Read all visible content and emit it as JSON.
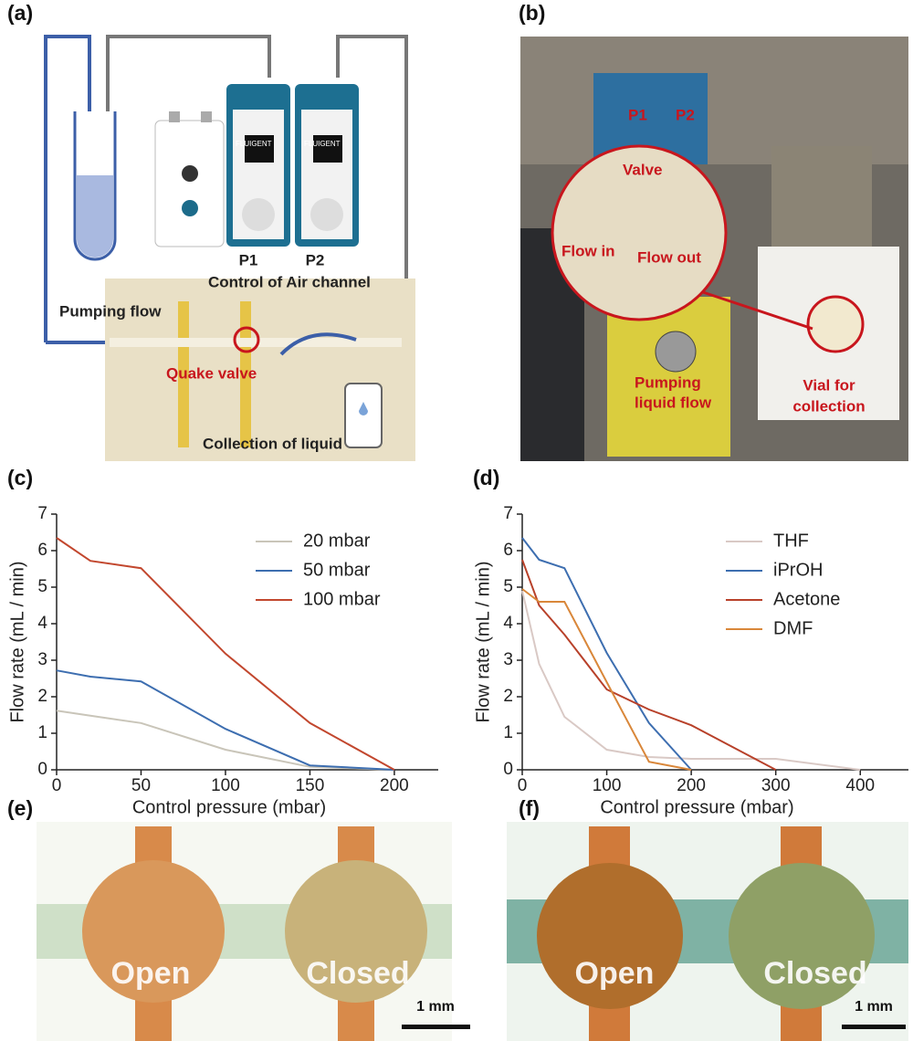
{
  "panels": {
    "a": {
      "label": "(a)",
      "p1": "P1",
      "p2": "P2",
      "brand": "FLUIGENT",
      "control": "Control of Air channel",
      "pumping": "Pumping flow",
      "valve": "Quake valve",
      "collection": "Collection of liquid"
    },
    "b": {
      "label": "(b)",
      "p1": "P1",
      "p2": "P2",
      "valve": "Valve",
      "flow_in": "Flow in",
      "flow_out": "Flow out",
      "pumping": [
        "Pumping",
        "liquid flow"
      ],
      "vial": [
        "Vial for",
        "collection"
      ]
    },
    "e": {
      "label": "(e)",
      "open": "Open",
      "closed": "Closed",
      "scale": "1 mm"
    },
    "f": {
      "label": "(f)",
      "open": "Open",
      "closed": "Closed",
      "scale": "1 mm"
    }
  },
  "chart_data": [
    {
      "type": "line",
      "label": "(c)",
      "xlabel": "Control pressure (mbar)",
      "ylabel": "Flow rate (mL / min)",
      "x": [
        0,
        20,
        50,
        100,
        150,
        200
      ],
      "series": [
        {
          "name": "20 mbar",
          "color": "#c9c5b9",
          "values": [
            1.62,
            1.48,
            1.28,
            0.55,
            0.08,
            0
          ]
        },
        {
          "name": "50 mbar",
          "color": "#3d6eb0",
          "values": [
            2.72,
            2.55,
            2.42,
            1.12,
            0.12,
            0
          ]
        },
        {
          "name": "100 mbar",
          "color": "#c2472e",
          "values": [
            6.35,
            5.72,
            5.52,
            3.18,
            1.28,
            0
          ]
        }
      ],
      "xlim": [
        0,
        226
      ],
      "ylim": [
        0,
        7
      ],
      "xticks": [
        0,
        50,
        100,
        150,
        200
      ],
      "yticks": [
        0,
        1,
        2,
        3,
        4,
        5,
        6,
        7
      ],
      "legend": "upper right"
    },
    {
      "type": "line",
      "label": "(d)",
      "xlabel": "Control pressure (mbar)",
      "ylabel": "Flow rate (mL / min)",
      "series": [
        {
          "name": "THF",
          "color": "#d9c9c5",
          "x": [
            0,
            20,
            50,
            100,
            150,
            200,
            300,
            400
          ],
          "values": [
            4.9,
            2.9,
            1.45,
            0.55,
            0.35,
            0.3,
            0.3,
            0
          ]
        },
        {
          "name": "iPrOH",
          "color": "#3d6eb0",
          "x": [
            0,
            20,
            50,
            100,
            150,
            200
          ],
          "values": [
            6.35,
            5.75,
            5.52,
            3.2,
            1.28,
            0
          ]
        },
        {
          "name": "Acetone",
          "color": "#b8412a",
          "x": [
            0,
            20,
            50,
            100,
            150,
            200,
            300
          ],
          "values": [
            5.75,
            4.5,
            3.7,
            2.2,
            1.65,
            1.22,
            0
          ]
        },
        {
          "name": "DMF",
          "color": "#d9873a",
          "x": [
            0,
            20,
            50,
            100,
            150,
            200
          ],
          "values": [
            4.95,
            4.6,
            4.6,
            2.4,
            0.22,
            0
          ]
        }
      ],
      "xlim": [
        0,
        457
      ],
      "ylim": [
        0,
        7
      ],
      "xticks": [
        0,
        100,
        200,
        300,
        400
      ],
      "yticks": [
        0,
        1,
        2,
        3,
        4,
        5,
        6,
        7
      ],
      "legend": "upper right"
    }
  ]
}
